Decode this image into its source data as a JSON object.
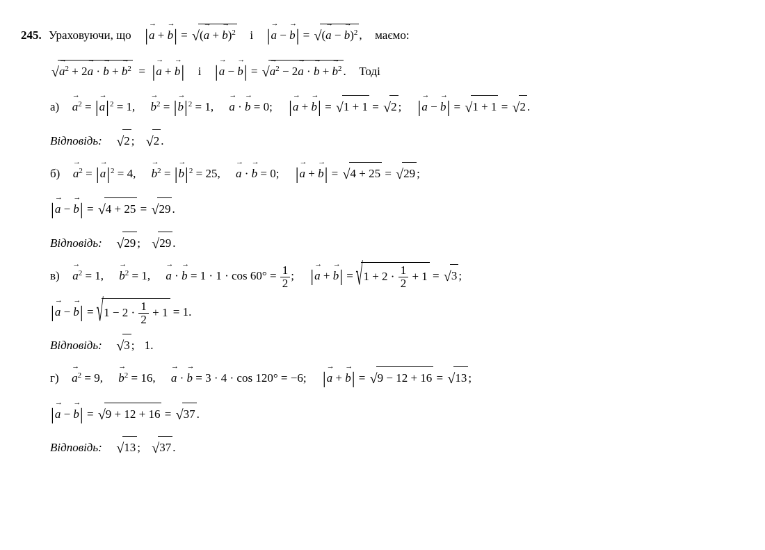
{
  "problem": {
    "number": "245.",
    "intro_prefix": "Ураховуючи, що",
    "intro_and": "і",
    "intro_suffix": "маємо:",
    "then": "Тоді",
    "answer_label": "Відповідь:",
    "parts": {
      "a": {
        "label": "а)",
        "a_sq": "1",
        "b_sq": "1",
        "dot": "0",
        "sum_expr": "1 + 1",
        "sum_val": "2",
        "diff_expr": "1 + 1",
        "diff_val": "2",
        "ans1": "2",
        "ans2": "2"
      },
      "b": {
        "label": "б)",
        "a_sq": "4",
        "b_sq": "25",
        "dot": "0",
        "sum_expr": "4 + 25",
        "sum_val": "29",
        "diff_expr": "4 + 25",
        "diff_val": "29",
        "ans1": "29",
        "ans2": "29"
      },
      "c": {
        "label": "в)",
        "a_sq": "1",
        "b_sq": "1",
        "dot_expr": "1 · 1 · cos 60°",
        "dot_frac_num": "1",
        "dot_frac_den": "2",
        "sum_pre": "1 + 2 ·",
        "sum_post": "+ 1",
        "sum_val": "3",
        "diff_pre": "1 − 2 ·",
        "diff_post": "+ 1",
        "diff_result": "1",
        "ans1_sqrt": "3",
        "ans2_plain": "1"
      },
      "d": {
        "label": "г)",
        "a_sq": "9",
        "b_sq": "16",
        "dot_expr": "3 · 4 · cos 120°",
        "dot_val": "−6",
        "sum_expr": "9 − 12 + 16",
        "sum_val": "13",
        "diff_expr": "9 + 12 + 16",
        "diff_val": "37",
        "ans1": "13",
        "ans2": "37"
      }
    }
  }
}
